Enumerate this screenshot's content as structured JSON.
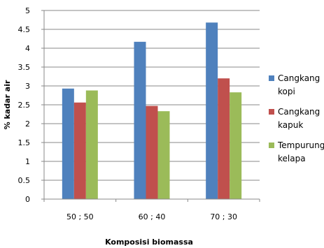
{
  "chart_data": {
    "type": "bar",
    "title": "",
    "xlabel": "Komposisi biomassa",
    "ylabel": "% kadar air",
    "ylim": [
      0,
      5
    ],
    "yticks": [
      "0",
      "0.5",
      "1",
      "1.5",
      "2",
      "2.5",
      "3",
      "3.5",
      "4",
      "4.5",
      "5"
    ],
    "grid": true,
    "legend_position": "right",
    "categories": [
      "50 ; 50",
      "60 ; 40",
      "70 ; 30"
    ],
    "series": [
      {
        "name": "Cangkang kopi",
        "legend_lines": [
          "Cangkang",
          "kopi"
        ],
        "color": "#4F81BD",
        "values": [
          2.93,
          4.17,
          4.68
        ]
      },
      {
        "name": "Cangkang kapuk",
        "legend_lines": [
          "Cangkang",
          "kapuk"
        ],
        "color": "#C0504D",
        "values": [
          2.56,
          2.47,
          3.2
        ]
      },
      {
        "name": "Tempurung kelapa",
        "legend_lines": [
          "Tempurung",
          "kelapa"
        ],
        "color": "#9BBB59",
        "values": [
          2.88,
          2.33,
          2.83
        ]
      }
    ]
  }
}
